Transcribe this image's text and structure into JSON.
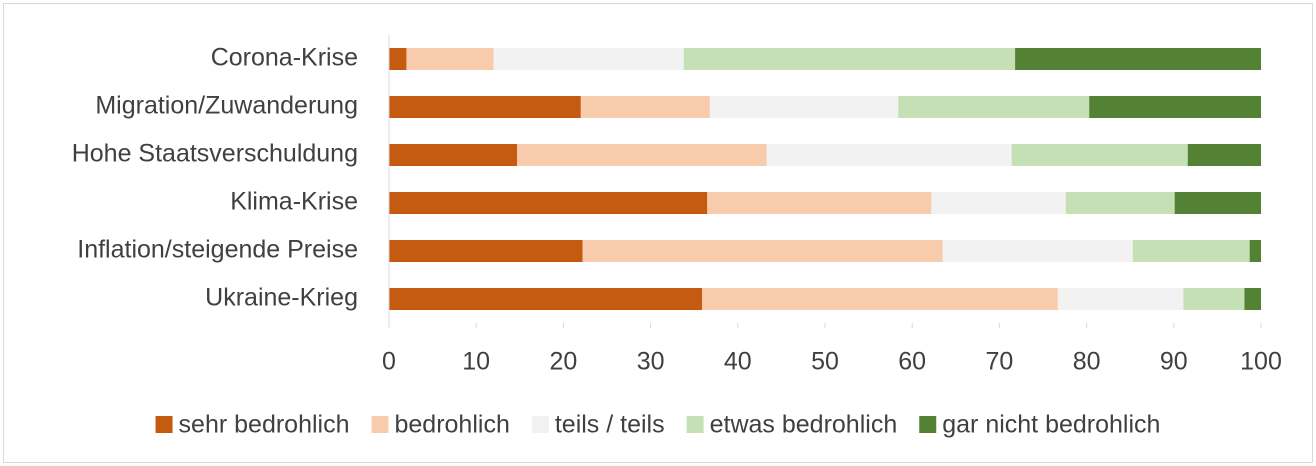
{
  "chart_data": {
    "type": "stacked-bar-horizontal",
    "categories": [
      "Corona-Krise",
      "Migration/Zuwanderung",
      "Hohe Staatsverschuldung",
      "Klima-Krise",
      "Inflation/steigende Preise",
      "Ukraine-Krieg"
    ],
    "series": [
      {
        "name": "sehr bedrohlich",
        "color": "#c55a11",
        "values": [
          2,
          22,
          14.7,
          36.5,
          22.2,
          35.9
        ]
      },
      {
        "name": "bedrohlich",
        "color": "#f8cbad",
        "values": [
          10,
          14.8,
          28.6,
          25.7,
          41.3,
          40.8
        ]
      },
      {
        "name": "teils / teils",
        "color": "#f2f2f2",
        "values": [
          21.8,
          21.6,
          28.1,
          15.4,
          21.8,
          14.4
        ]
      },
      {
        "name": "etwas bedrohlich",
        "color": "#c5e0b4",
        "values": [
          38,
          21.9,
          20.2,
          12.5,
          13.4,
          7
        ]
      },
      {
        "name": "gar nicht bedrohlich",
        "color": "#548235",
        "values": [
          28.2,
          19.7,
          8.4,
          9.9,
          1.3,
          1.9
        ]
      }
    ],
    "xlim": [
      0,
      100
    ],
    "xticks": [
      0,
      10,
      20,
      30,
      40,
      50,
      60,
      70,
      80,
      90,
      100
    ],
    "grid": false,
    "legend": "bottom"
  }
}
